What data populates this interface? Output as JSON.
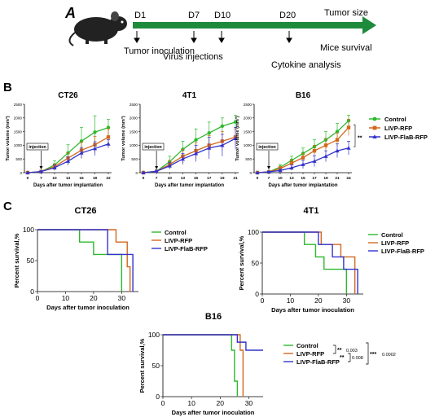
{
  "panels": {
    "a": "A",
    "b": "B",
    "c": "C"
  },
  "timeline": {
    "days": [
      "D1",
      "D7",
      "D10",
      "D20"
    ],
    "end_label": "Tumor size",
    "events": [
      "Tumor inoculation",
      "Virus injections",
      "Cytokine analysis",
      "Mice survival"
    ],
    "arrow_color": "#1e8a3c"
  },
  "colors": {
    "control": "#2db82d",
    "livp_rfp": "#d2691e",
    "livp_flab_rfp": "#3333cc"
  },
  "tumor_legend": [
    "Control",
    "LIVP-RFP",
    "LIVP-FlaB-RFP"
  ],
  "injection_label": "injection",
  "chart_data": [
    {
      "type": "line",
      "title": "CT26",
      "xlabel": "Days after tumor implantation",
      "ylabel": "Tumor volume (mm³)",
      "x": [
        0,
        7,
        10,
        13,
        16,
        19,
        22
      ],
      "xticks": [
        "0",
        "7",
        "10",
        "13",
        "16",
        "19",
        "22"
      ],
      "yticks": [
        "0",
        "500",
        "1000",
        "1500",
        "2000",
        "2500"
      ],
      "ylim": [
        0,
        2500
      ],
      "series": [
        {
          "name": "Control",
          "values": [
            0,
            40,
            280,
            720,
            1150,
            1480,
            1650
          ],
          "err": [
            0,
            30,
            150,
            300,
            500,
            600,
            300
          ]
        },
        {
          "name": "LIVP-RFP",
          "values": [
            0,
            40,
            220,
            530,
            820,
            1020,
            1300
          ],
          "err": [
            0,
            30,
            100,
            200,
            300,
            300,
            300
          ]
        },
        {
          "name": "LIVP-FlaB-RFP",
          "values": [
            0,
            40,
            180,
            420,
            720,
            880,
            1050
          ],
          "err": [
            0,
            30,
            100,
            150,
            200,
            250,
            150
          ]
        }
      ],
      "annotation": "injection"
    },
    {
      "type": "line",
      "title": "4T1",
      "xlabel": "Days after tumor implantation",
      "ylabel": "Tumor volume (mm³)",
      "x": [
        0,
        7,
        10,
        13,
        15,
        17,
        19,
        21
      ],
      "xticks": [
        "0",
        "7",
        "10",
        "13",
        "15",
        "17",
        "19",
        "21"
      ],
      "yticks": [
        "0",
        "500",
        "1000",
        "1500",
        "2000",
        "2500"
      ],
      "ylim": [
        0,
        2500
      ],
      "series": [
        {
          "name": "Control",
          "values": [
            0,
            50,
            400,
            850,
            1200,
            1450,
            1700,
            1850
          ],
          "err": [
            0,
            40,
            200,
            300,
            400,
            400,
            300,
            250
          ]
        },
        {
          "name": "LIVP-RFP",
          "values": [
            0,
            50,
            300,
            600,
            800,
            1000,
            1150,
            1300
          ],
          "err": [
            0,
            40,
            150,
            250,
            300,
            350,
            350,
            300
          ]
        },
        {
          "name": "LIVP-FlaB-RFP",
          "values": [
            0,
            50,
            250,
            500,
            700,
            900,
            1000,
            1250
          ],
          "err": [
            0,
            40,
            120,
            200,
            300,
            400,
            400,
            400
          ]
        }
      ],
      "annotation": "injection"
    },
    {
      "type": "line",
      "title": "B16",
      "xlabel": "Days after tumor implantation",
      "ylabel": "Tumor volume (mm³)",
      "x": [
        0,
        7,
        10,
        13,
        15,
        17,
        19,
        21,
        24
      ],
      "xticks": [
        "0",
        "7",
        "10",
        "13",
        "15",
        "17",
        "19",
        "21",
        "24"
      ],
      "yticks": [
        "0",
        "500",
        "1000",
        "1500",
        "2000",
        "2500"
      ],
      "ylim": [
        0,
        2500
      ],
      "series": [
        {
          "name": "Control",
          "values": [
            0,
            30,
            200,
            450,
            700,
            950,
            1200,
            1500,
            1900
          ],
          "err": [
            0,
            30,
            100,
            150,
            200,
            250,
            300,
            300,
            200
          ]
        },
        {
          "name": "LIVP-RFP",
          "values": [
            0,
            30,
            150,
            350,
            550,
            800,
            1000,
            1200,
            1650
          ],
          "err": [
            0,
            30,
            80,
            120,
            150,
            200,
            250,
            250,
            300
          ]
        },
        {
          "name": "LIVP-FlaB-RFP",
          "values": [
            0,
            30,
            80,
            180,
            300,
            420,
            600,
            800,
            900
          ],
          "err": [
            0,
            20,
            50,
            100,
            150,
            200,
            200,
            250,
            250
          ]
        }
      ],
      "annotation": "injection",
      "significance": "**"
    },
    {
      "type": "line",
      "title": "CT26",
      "xlabel": "Days after tumor inoculation",
      "ylabel": "Percent survival,%",
      "xticks": [
        "0",
        "10",
        "20",
        "30"
      ],
      "yticks": [
        "0",
        "50",
        "100"
      ],
      "xlim": [
        0,
        36
      ],
      "ylim": [
        0,
        100
      ],
      "series": [
        {
          "name": "Control",
          "steps": [
            [
              0,
              100
            ],
            [
              15,
              100
            ],
            [
              15,
              80
            ],
            [
              20,
              80
            ],
            [
              20,
              60
            ],
            [
              30,
              60
            ],
            [
              30,
              0
            ]
          ]
        },
        {
          "name": "LIVP-RFP",
          "steps": [
            [
              0,
              100
            ],
            [
              28,
              100
            ],
            [
              28,
              80
            ],
            [
              32,
              80
            ],
            [
              32,
              40
            ],
            [
              33,
              40
            ],
            [
              33,
              0
            ]
          ]
        },
        {
          "name": "LIVP-FlaB-RFP",
          "steps": [
            [
              0,
              100
            ],
            [
              25,
              100
            ],
            [
              25,
              60
            ],
            [
              34,
              60
            ],
            [
              34,
              0
            ]
          ]
        }
      ],
      "legend": [
        "Control",
        "LIVP-RFP",
        "LIVP-FlaB-RFP"
      ]
    },
    {
      "type": "line",
      "title": "4T1",
      "xlabel": "Days after tumor inoculation",
      "ylabel": "Percent survival,%",
      "xticks": [
        "0",
        "10",
        "20",
        "30"
      ],
      "yticks": [
        "0",
        "50",
        "100"
      ],
      "xlim": [
        0,
        36
      ],
      "ylim": [
        0,
        100
      ],
      "series": [
        {
          "name": "Control",
          "steps": [
            [
              0,
              100
            ],
            [
              15,
              100
            ],
            [
              15,
              80
            ],
            [
              19,
              80
            ],
            [
              19,
              60
            ],
            [
              22,
              60
            ],
            [
              22,
              40
            ],
            [
              30,
              40
            ],
            [
              30,
              0
            ]
          ]
        },
        {
          "name": "LIVP-RFP",
          "steps": [
            [
              0,
              100
            ],
            [
              21,
              100
            ],
            [
              21,
              80
            ],
            [
              28,
              80
            ],
            [
              28,
              60
            ],
            [
              33,
              60
            ],
            [
              33,
              0
            ]
          ]
        },
        {
          "name": "LIVP-FlaB-RFP",
          "steps": [
            [
              0,
              100
            ],
            [
              20,
              100
            ],
            [
              20,
              80
            ],
            [
              25,
              80
            ],
            [
              25,
              60
            ],
            [
              29,
              60
            ],
            [
              29,
              40
            ],
            [
              34,
              40
            ],
            [
              34,
              0
            ]
          ]
        }
      ],
      "legend": [
        "Control",
        "LIVP-RFP",
        "LIVP-FlaB-RFP"
      ]
    },
    {
      "type": "line",
      "title": "B16",
      "xlabel": "Days after tumor inoculation",
      "ylabel": "Percent survival,%",
      "xticks": [
        "0",
        "10",
        "20",
        "30"
      ],
      "yticks": [
        "0",
        "50",
        "100"
      ],
      "xlim": [
        0,
        35
      ],
      "ylim": [
        0,
        100
      ],
      "series": [
        {
          "name": "Control",
          "steps": [
            [
              0,
              100
            ],
            [
              24,
              100
            ],
            [
              24,
              75
            ],
            [
              25,
              75
            ],
            [
              25,
              25
            ],
            [
              26,
              25
            ],
            [
              26,
              0
            ]
          ]
        },
        {
          "name": "LIVP-RFP",
          "steps": [
            [
              0,
              100
            ],
            [
              27,
              100
            ],
            [
              27,
              75
            ],
            [
              28,
              75
            ],
            [
              28,
              0
            ]
          ]
        },
        {
          "name": "LIVP-FlaB-RFP",
          "steps": [
            [
              0,
              100
            ],
            [
              26,
              100
            ],
            [
              26,
              88
            ],
            [
              29,
              88
            ],
            [
              29,
              75
            ],
            [
              35,
              75
            ]
          ]
        }
      ],
      "legend": [
        "Control",
        "LIVP-RFP",
        "LIVP-FlaB-RFP"
      ],
      "significance": [
        {
          "label": "**",
          "p": "0.003"
        },
        {
          "label": "**",
          "p": "0.008"
        },
        {
          "label": "***",
          "p": "0.0002"
        }
      ]
    }
  ]
}
